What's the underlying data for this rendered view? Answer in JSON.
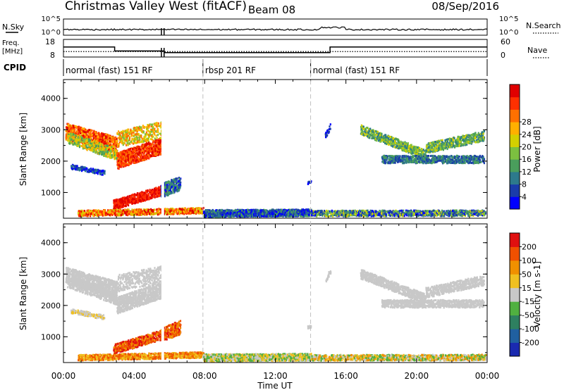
{
  "header": {
    "station": "Christmas Valley West (fitACF)",
    "beam": "Beam 08",
    "date": "08/Sep/2016"
  },
  "top_panels": {
    "nsky_label": "N.Sky",
    "nsearch_label": "N.Search",
    "noise_ticks": [
      "10^5",
      "10^0"
    ],
    "freq_label_line1": "Freq.",
    "freq_label_line2": "[MHz]",
    "freq_ticks": [
      "18",
      "8"
    ],
    "nave_label": "Nave",
    "nave_ticks": [
      "60",
      "0"
    ],
    "cpid_label": "CPID"
  },
  "cpid_segments": [
    {
      "label": "normal (fast) 151 RF",
      "start_h": 0.0,
      "end_h": 7.9
    },
    {
      "label": "rbsp 201 RF",
      "start_h": 7.9,
      "end_h": 14.0
    },
    {
      "label": "normal (fast) 151 RF",
      "start_h": 14.0,
      "end_h": 24.0
    }
  ],
  "chart_data": [
    {
      "type": "heatmap",
      "name": "power",
      "ylabel": "Slant Range [km]",
      "yticks": [
        1000,
        2000,
        3000,
        4000
      ],
      "ylim": [
        180,
        4600
      ],
      "xlim_hours": [
        0,
        24
      ],
      "colorbar": {
        "label": "Power [dB]",
        "ticks": [
          "4",
          "8",
          "12",
          "16",
          "20",
          "24",
          "28"
        ],
        "colors": [
          "#0000ff",
          "#1a3caa",
          "#2d7a8c",
          "#4a9e5c",
          "#7cc040",
          "#d4d000",
          "#ffb000",
          "#ff7000",
          "#ff3000",
          "#e00000"
        ]
      }
    },
    {
      "type": "heatmap",
      "name": "velocity",
      "ylabel": "Slant Range [km]",
      "yticks": [
        1000,
        2000,
        3000,
        4000
      ],
      "ylim": [
        180,
        4600
      ],
      "xlim_hours": [
        0,
        24
      ],
      "xlabel": "Time UT",
      "xticks": [
        "00:00",
        "04:00",
        "08:00",
        "12:00",
        "16:00",
        "20:00",
        "00:00"
      ],
      "colorbar": {
        "label": "Velocity [m s-1]",
        "ticks": [
          "200",
          "100",
          "50",
          "15",
          "-15",
          "-50",
          "-100",
          "-200"
        ],
        "colors": [
          "#1a2ab0",
          "#2060a0",
          "#2e8060",
          "#50b040",
          "#c8c8c8",
          "#f0c020",
          "#f09000",
          "#f05000",
          "#e01010"
        ]
      }
    }
  ]
}
